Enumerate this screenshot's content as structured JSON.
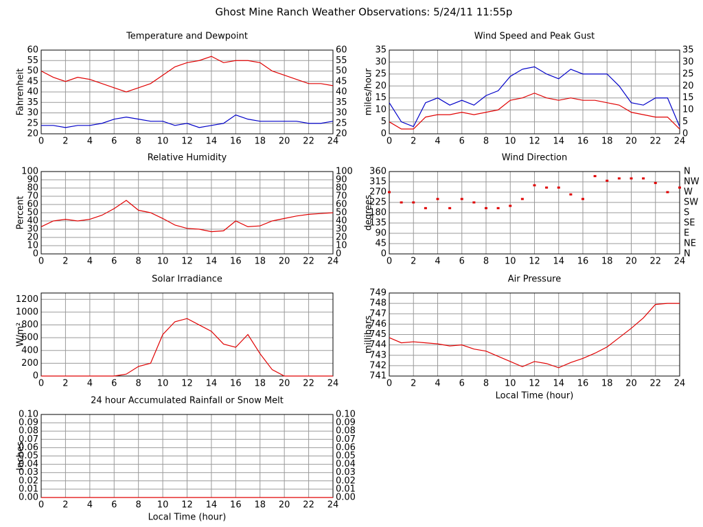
{
  "title": "Ghost Mine Ranch Weather Observations: 5/24/11 11:55p",
  "chart_data": [
    {
      "type": "line",
      "title": "Temperature and Dewpoint",
      "y_label": "Fahrenheit",
      "mirror_y": true,
      "x": [
        0,
        1,
        2,
        3,
        4,
        5,
        6,
        7,
        8,
        9,
        10,
        11,
        12,
        13,
        14,
        15,
        16,
        17,
        18,
        19,
        20,
        21,
        22,
        23,
        24
      ],
      "xlim": [
        0,
        24
      ],
      "xticks": [
        0,
        2,
        4,
        6,
        8,
        10,
        12,
        14,
        16,
        18,
        20,
        22,
        24
      ],
      "ylim": [
        20,
        60
      ],
      "yticks": [
        20,
        25,
        30,
        35,
        40,
        45,
        50,
        55,
        60
      ],
      "grid": true,
      "series": [
        {
          "color": "#e00000",
          "values": [
            50,
            47,
            45,
            47,
            46,
            44,
            42,
            40,
            42,
            44,
            48,
            52,
            54,
            55,
            57,
            54,
            55,
            55,
            54,
            50,
            48,
            46,
            44,
            44,
            43
          ]
        },
        {
          "color": "#0000c8",
          "values": [
            24,
            24,
            23,
            24,
            24,
            25,
            27,
            28,
            27,
            26,
            26,
            24,
            25,
            23,
            24,
            25,
            29,
            27,
            26,
            26,
            26,
            26,
            25,
            25,
            26
          ]
        }
      ]
    },
    {
      "type": "line",
      "title": "Wind Speed and Peak Gust",
      "y_label": "miles/hour",
      "mirror_y": true,
      "x": [
        0,
        1,
        2,
        3,
        4,
        5,
        6,
        7,
        8,
        9,
        10,
        11,
        12,
        13,
        14,
        15,
        16,
        17,
        18,
        19,
        20,
        21,
        22,
        23,
        24
      ],
      "xlim": [
        0,
        24
      ],
      "xticks": [
        0,
        2,
        4,
        6,
        8,
        10,
        12,
        14,
        16,
        18,
        20,
        22,
        24
      ],
      "ylim": [
        0,
        35
      ],
      "yticks": [
        0,
        5,
        10,
        15,
        20,
        25,
        30,
        35
      ],
      "grid": true,
      "series": [
        {
          "color": "#0000c8",
          "values": [
            13,
            5,
            3,
            13,
            15,
            12,
            14,
            12,
            16,
            18,
            24,
            27,
            28,
            25,
            23,
            27,
            25,
            25,
            25,
            20,
            13,
            12,
            15,
            15,
            3
          ]
        },
        {
          "color": "#e00000",
          "values": [
            5,
            2,
            2,
            7,
            8,
            8,
            9,
            8,
            9,
            10,
            14,
            15,
            17,
            15,
            14,
            15,
            14,
            14,
            13,
            12,
            9,
            8,
            7,
            7,
            2
          ]
        }
      ]
    },
    {
      "type": "line",
      "title": "Relative Humidity",
      "y_label": "Percent",
      "mirror_y": true,
      "x": [
        0,
        1,
        2,
        3,
        4,
        5,
        6,
        7,
        8,
        9,
        10,
        11,
        12,
        13,
        14,
        15,
        16,
        17,
        18,
        19,
        20,
        21,
        22,
        23,
        24
      ],
      "xlim": [
        0,
        24
      ],
      "xticks": [
        0,
        2,
        4,
        6,
        8,
        10,
        12,
        14,
        16,
        18,
        20,
        22,
        24
      ],
      "ylim": [
        0,
        100
      ],
      "yticks": [
        0,
        10,
        20,
        30,
        40,
        50,
        60,
        70,
        80,
        90,
        100
      ],
      "grid": true,
      "series": [
        {
          "color": "#e00000",
          "values": [
            33,
            40,
            42,
            40,
            42,
            47,
            55,
            65,
            53,
            50,
            43,
            35,
            31,
            30,
            27,
            28,
            40,
            33,
            34,
            40,
            43,
            46,
            48,
            49,
            50
          ]
        }
      ]
    },
    {
      "type": "scatter",
      "title": "Wind Direction",
      "y_label": "degrees",
      "x": [
        0,
        1,
        2,
        3,
        4,
        5,
        6,
        7,
        8,
        9,
        10,
        11,
        12,
        13,
        14,
        15,
        16,
        17,
        18,
        19,
        20,
        21,
        22,
        23,
        24
      ],
      "xlim": [
        0,
        24
      ],
      "xticks": [
        0,
        2,
        4,
        6,
        8,
        10,
        12,
        14,
        16,
        18,
        20,
        22,
        24
      ],
      "ylim": [
        0,
        360
      ],
      "yticks": [
        0,
        45,
        90,
        135,
        180,
        225,
        270,
        315,
        360
      ],
      "grid": true,
      "y2lim": [
        0,
        360
      ],
      "y2ticks": [
        {
          "value": 0,
          "label": "N"
        },
        {
          "value": 45,
          "label": "NE"
        },
        {
          "value": 90,
          "label": "E"
        },
        {
          "value": 135,
          "label": "SE"
        },
        {
          "value": 180,
          "label": "S"
        },
        {
          "value": 225,
          "label": "SW"
        },
        {
          "value": 270,
          "label": "W"
        },
        {
          "value": 315,
          "label": "NW"
        },
        {
          "value": 360,
          "label": "N"
        }
      ],
      "series": [
        {
          "color": "#e00000",
          "values": [
            270,
            225,
            225,
            200,
            240,
            200,
            240,
            225,
            200,
            200,
            210,
            240,
            300,
            290,
            290,
            260,
            240,
            340,
            320,
            330,
            330,
            330,
            310,
            270,
            290
          ]
        }
      ]
    },
    {
      "type": "line",
      "title": "Solar Irradiance",
      "y_label": "W/m²",
      "x": [
        0,
        1,
        2,
        3,
        4,
        5,
        6,
        7,
        8,
        9,
        10,
        11,
        12,
        13,
        14,
        15,
        16,
        17,
        18,
        19,
        20,
        21,
        22,
        23,
        24
      ],
      "xlim": [
        0,
        24
      ],
      "xticks": [
        0,
        2,
        4,
        6,
        8,
        10,
        12,
        14,
        16,
        18,
        20,
        22,
        24
      ],
      "ylim": [
        0,
        1300
      ],
      "yticks": [
        0,
        200,
        400,
        600,
        800,
        1000,
        1200
      ],
      "grid": true,
      "series": [
        {
          "color": "#e00000",
          "values": [
            0,
            0,
            0,
            0,
            0,
            0,
            0,
            30,
            150,
            200,
            650,
            850,
            900,
            800,
            700,
            500,
            450,
            650,
            350,
            100,
            0,
            0,
            0,
            0,
            0
          ]
        }
      ]
    },
    {
      "type": "line",
      "title": "Air Pressure",
      "y_label": "millibars",
      "x_label": "Local Time (hour)",
      "x": [
        0,
        1,
        2,
        3,
        4,
        5,
        6,
        7,
        8,
        9,
        10,
        11,
        12,
        13,
        14,
        15,
        16,
        17,
        18,
        19,
        20,
        21,
        22,
        23,
        24
      ],
      "xlim": [
        0,
        24
      ],
      "xticks": [
        0,
        2,
        4,
        6,
        8,
        10,
        12,
        14,
        16,
        18,
        20,
        22,
        24
      ],
      "ylim": [
        741,
        749
      ],
      "yticks": [
        741,
        742,
        743,
        744,
        745,
        746,
        747,
        748,
        749
      ],
      "grid": true,
      "series": [
        {
          "color": "#e00000",
          "values": [
            744.7,
            744.2,
            744.3,
            744.2,
            744.1,
            743.9,
            744.0,
            743.6,
            743.4,
            742.9,
            742.4,
            741.9,
            742.4,
            742.2,
            741.8,
            742.3,
            742.7,
            743.2,
            743.8,
            744.7,
            745.6,
            746.6,
            747.9,
            748.0,
            748.0
          ]
        }
      ]
    },
    {
      "type": "line",
      "title": "24 hour Accumulated Rainfall or Snow Melt",
      "y_label": "Inches",
      "x_label": "Local Time (hour)",
      "mirror_y": true,
      "x": [
        0,
        1,
        2,
        3,
        4,
        5,
        6,
        7,
        8,
        9,
        10,
        11,
        12,
        13,
        14,
        15,
        16,
        17,
        18,
        19,
        20,
        21,
        22,
        23,
        24
      ],
      "xlim": [
        0,
        24
      ],
      "xticks": [
        0,
        2,
        4,
        6,
        8,
        10,
        12,
        14,
        16,
        18,
        20,
        22,
        24
      ],
      "ylim": [
        0,
        0.1
      ],
      "yticks": [
        {
          "value": 0,
          "label": "0.00"
        },
        {
          "value": 0.01,
          "label": "0.01"
        },
        {
          "value": 0.02,
          "label": "0.02"
        },
        {
          "value": 0.03,
          "label": "0.03"
        },
        {
          "value": 0.04,
          "label": "0.04"
        },
        {
          "value": 0.05,
          "label": "0.05"
        },
        {
          "value": 0.06,
          "label": "0.06"
        },
        {
          "value": 0.07,
          "label": "0.07"
        },
        {
          "value": 0.08,
          "label": "0.08"
        },
        {
          "value": 0.09,
          "label": "0.09"
        },
        {
          "value": 0.1,
          "label": "0.10"
        }
      ],
      "grid": true,
      "series": [
        {
          "color": "#e00000",
          "values": [
            0,
            0,
            0,
            0,
            0,
            0,
            0,
            0,
            0,
            0,
            0,
            0,
            0,
            0,
            0,
            0,
            0,
            0,
            0,
            0,
            0,
            0,
            0,
            0,
            0
          ]
        }
      ]
    }
  ]
}
